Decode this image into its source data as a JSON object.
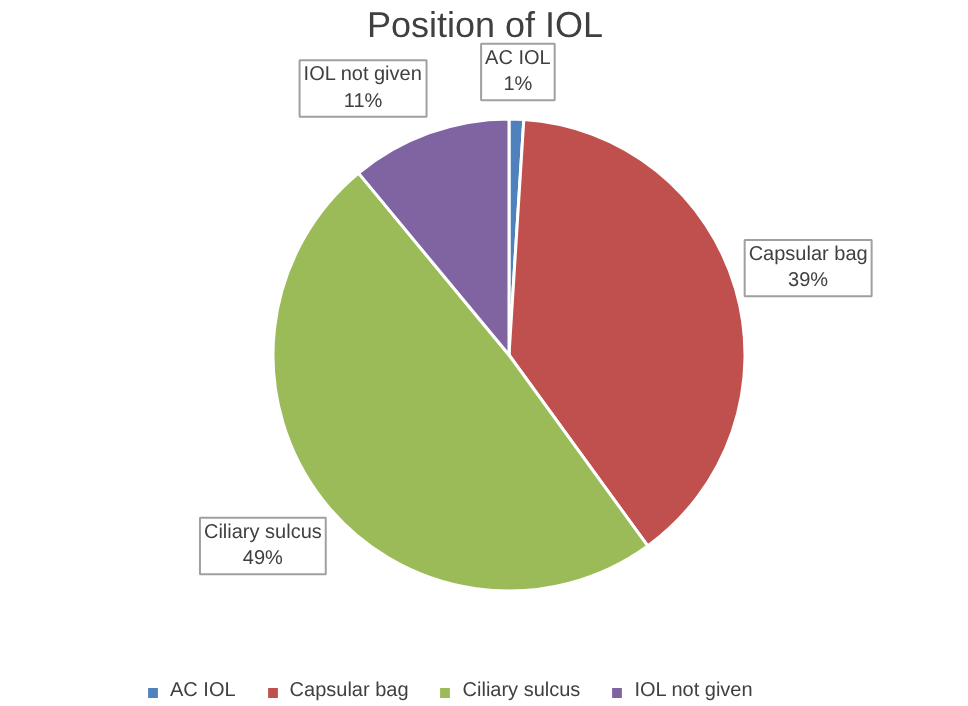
{
  "chart_data": {
    "type": "pie",
    "title": "Position of IOL",
    "categories": [
      "AC IOL",
      "Capsular bag",
      "Ciliary sulcus",
      "IOL not given"
    ],
    "values": [
      1,
      39,
      49,
      11
    ],
    "colors": [
      "#4f81bd",
      "#c0504d",
      "#9bbb59",
      "#8064a2"
    ],
    "value_labels": [
      "1%",
      "39%",
      "49%",
      "11%"
    ],
    "legend": "bottom"
  }
}
